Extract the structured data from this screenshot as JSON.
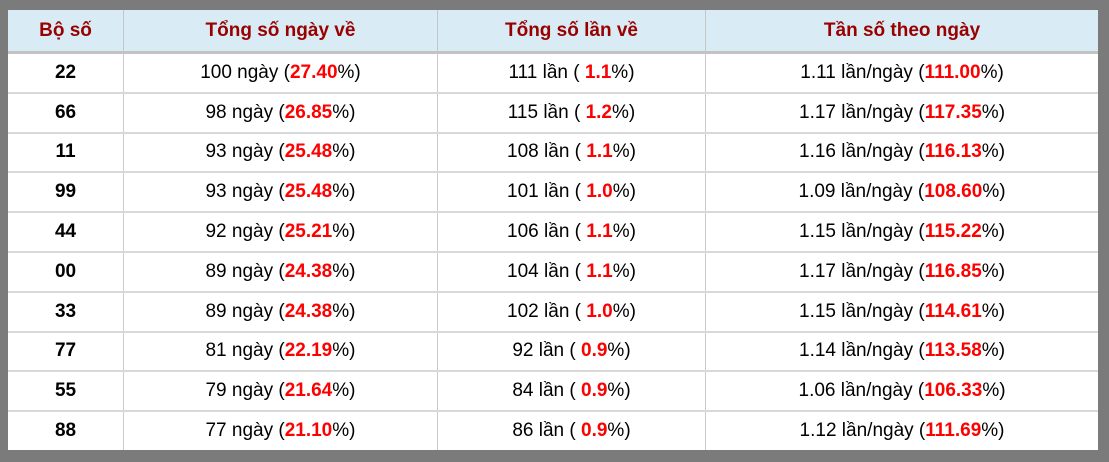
{
  "colors": {
    "frame_gray": "#7b7b7b",
    "header_bg": "#d9ecf5",
    "header_text": "#990000",
    "highlight_red": "#ff0000",
    "body_text": "#000000"
  },
  "header": {
    "col_pair": "Bộ số",
    "col_days": "Tổng số ngày về",
    "col_times": "Tổng số lần về",
    "col_freq": "Tần số theo ngày"
  },
  "rows": [
    {
      "pair": "22",
      "days_pre": "100 ngày (",
      "days_red": "27.40",
      "days_post": "%)",
      "times_pre": "111 lần ( ",
      "times_red": "1.1",
      "times_post": "%)",
      "freq_pre": "1.11 lần/ngày (",
      "freq_red": "111.00",
      "freq_post": "%)"
    },
    {
      "pair": "66",
      "days_pre": "98 ngày (",
      "days_red": "26.85",
      "days_post": "%)",
      "times_pre": "115 lần ( ",
      "times_red": "1.2",
      "times_post": "%)",
      "freq_pre": "1.17 lần/ngày (",
      "freq_red": "117.35",
      "freq_post": "%)"
    },
    {
      "pair": "11",
      "days_pre": "93 ngày (",
      "days_red": "25.48",
      "days_post": "%)",
      "times_pre": "108 lần ( ",
      "times_red": "1.1",
      "times_post": "%)",
      "freq_pre": "1.16 lần/ngày (",
      "freq_red": "116.13",
      "freq_post": "%)"
    },
    {
      "pair": "99",
      "days_pre": "93 ngày (",
      "days_red": "25.48",
      "days_post": "%)",
      "times_pre": "101 lần ( ",
      "times_red": "1.0",
      "times_post": "%)",
      "freq_pre": "1.09 lần/ngày (",
      "freq_red": "108.60",
      "freq_post": "%)"
    },
    {
      "pair": "44",
      "days_pre": "92 ngày (",
      "days_red": "25.21",
      "days_post": "%)",
      "times_pre": "106 lần ( ",
      "times_red": "1.1",
      "times_post": "%)",
      "freq_pre": "1.15 lần/ngày (",
      "freq_red": "115.22",
      "freq_post": "%)"
    },
    {
      "pair": "00",
      "days_pre": "89 ngày (",
      "days_red": "24.38",
      "days_post": "%)",
      "times_pre": "104 lần ( ",
      "times_red": "1.1",
      "times_post": "%)",
      "freq_pre": "1.17 lần/ngày (",
      "freq_red": "116.85",
      "freq_post": "%)"
    },
    {
      "pair": "33",
      "days_pre": "89 ngày (",
      "days_red": "24.38",
      "days_post": "%)",
      "times_pre": "102 lần ( ",
      "times_red": "1.0",
      "times_post": "%)",
      "freq_pre": "1.15 lần/ngày (",
      "freq_red": "114.61",
      "freq_post": "%)"
    },
    {
      "pair": "77",
      "days_pre": "81 ngày (",
      "days_red": "22.19",
      "days_post": "%)",
      "times_pre": "92 lần ( ",
      "times_red": "0.9",
      "times_post": "%)",
      "freq_pre": "1.14 lần/ngày (",
      "freq_red": "113.58",
      "freq_post": "%)"
    },
    {
      "pair": "55",
      "days_pre": "79 ngày (",
      "days_red": "21.64",
      "days_post": "%)",
      "times_pre": "84 lần ( ",
      "times_red": "0.9",
      "times_post": "%)",
      "freq_pre": "1.06 lần/ngày (",
      "freq_red": "106.33",
      "freq_post": "%)"
    },
    {
      "pair": "88",
      "days_pre": "77 ngày (",
      "days_red": "21.10",
      "days_post": "%)",
      "times_pre": "86 lần ( ",
      "times_red": "0.9",
      "times_post": "%)",
      "freq_pre": "1.12 lần/ngày (",
      "freq_red": "111.69",
      "freq_post": "%)"
    }
  ]
}
